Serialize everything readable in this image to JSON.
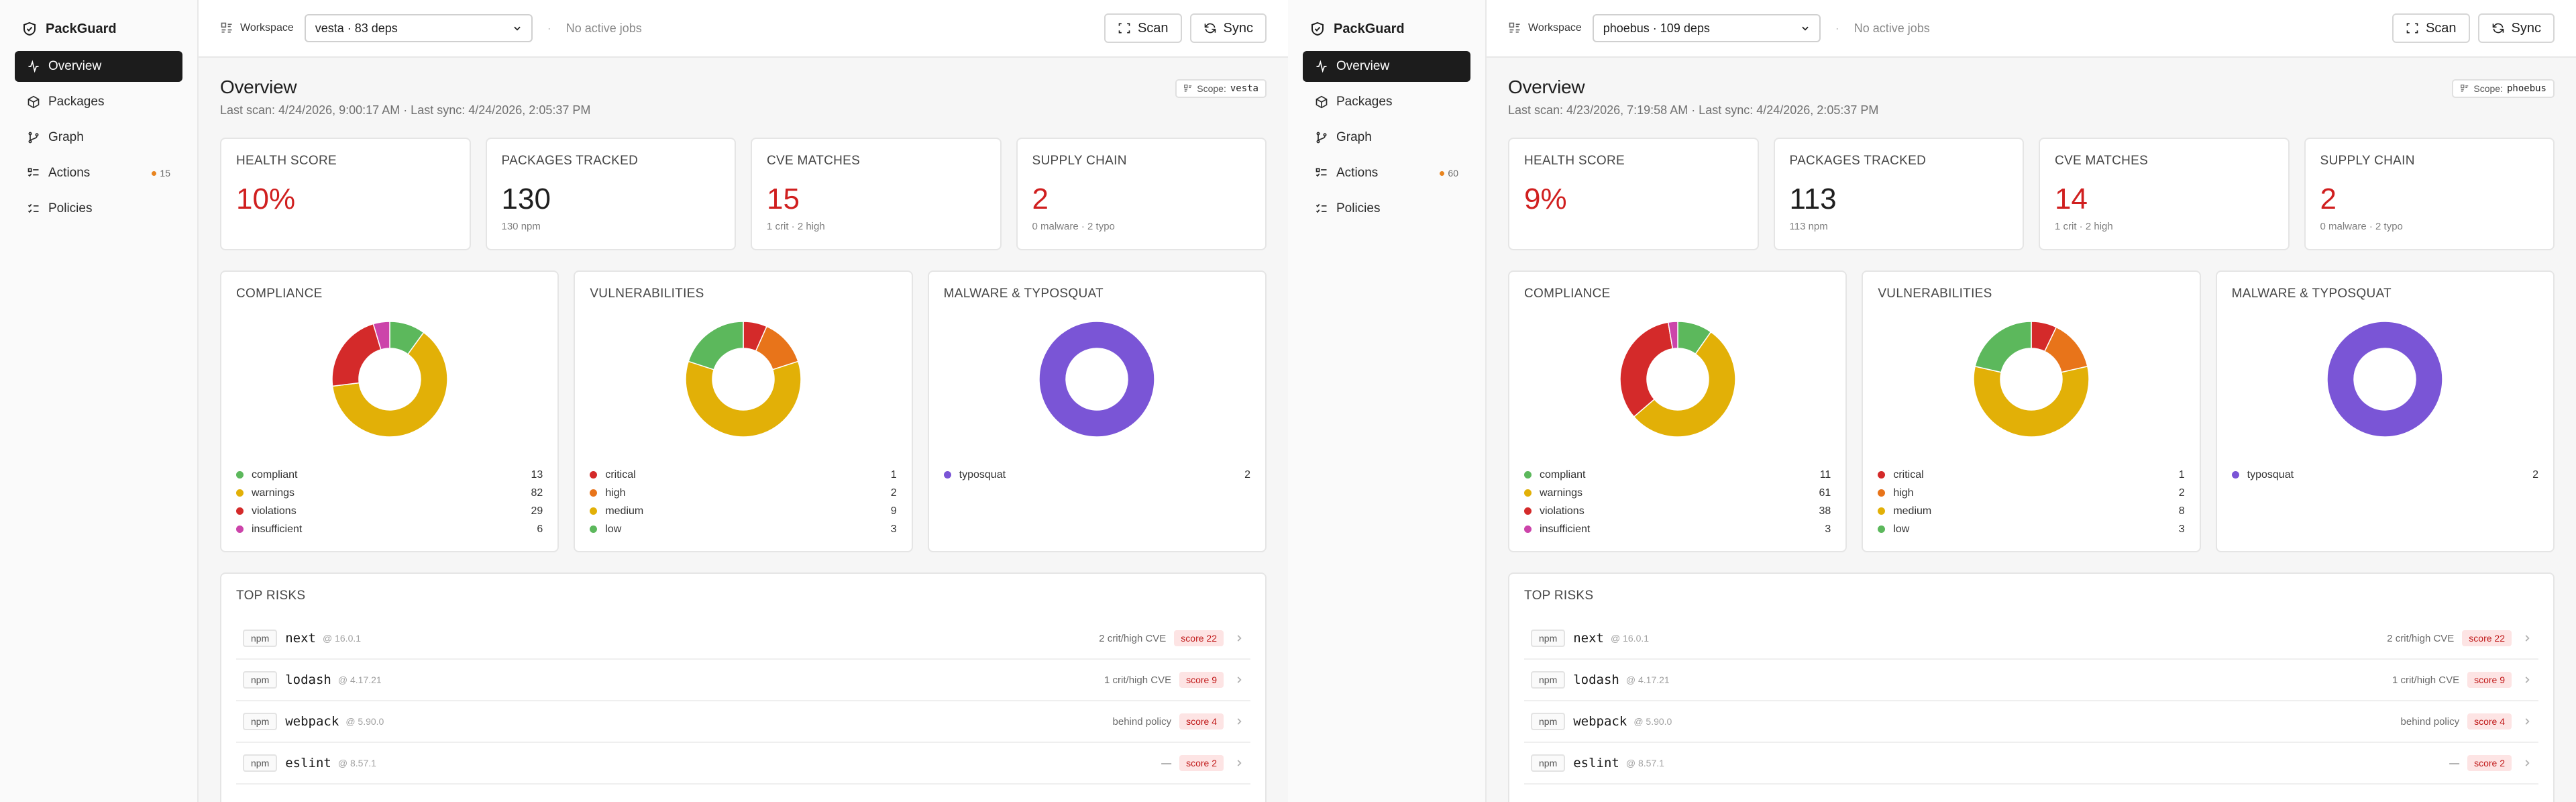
{
  "panels": [
    {
      "brand": "PackGuard",
      "nav": [
        {
          "label": "Overview",
          "badge": ""
        },
        {
          "label": "Packages",
          "badge": ""
        },
        {
          "label": "Graph",
          "badge": ""
        },
        {
          "label": "Actions",
          "badge": "15"
        },
        {
          "label": "Policies",
          "badge": ""
        }
      ],
      "topbar": {
        "workspace_label": "Workspace",
        "workspace_value": "vesta · 83 deps",
        "jobs": "No active jobs",
        "scan_label": "Scan",
        "sync_label": "Sync"
      },
      "page": {
        "title": "Overview",
        "subtitle": "Last scan: 4/24/2026, 9:00:17 AM · Last sync: 4/24/2026, 2:05:37 PM",
        "scope_label": "Scope:",
        "scope_value": "vesta"
      },
      "stats": [
        {
          "label": "HEALTH SCORE",
          "value": "10%",
          "sub": ""
        },
        {
          "label": "PACKAGES TRACKED",
          "value": "130",
          "sub": "130 npm"
        },
        {
          "label": "CVE MATCHES",
          "value": "15",
          "sub": "1 crit · 2 high"
        },
        {
          "label": "SUPPLY CHAIN",
          "value": "2",
          "sub": "0 malware · 2 typo"
        }
      ],
      "charts": [
        {
          "title": "COMPLIANCE",
          "items": [
            {
              "label": "compliant",
              "value": 13,
              "color": "#5cb85c"
            },
            {
              "label": "warnings",
              "value": 82,
              "color": "#e2b007"
            },
            {
              "label": "violations",
              "value": 29,
              "color": "#d42a2a"
            },
            {
              "label": "insufficient",
              "value": 6,
              "color": "#cc44aa"
            }
          ]
        },
        {
          "title": "VULNERABILITIES",
          "items": [
            {
              "label": "critical",
              "value": 1,
              "color": "#d42a2a"
            },
            {
              "label": "high",
              "value": 2,
              "color": "#e8741a"
            },
            {
              "label": "medium",
              "value": 9,
              "color": "#e2b007"
            },
            {
              "label": "low",
              "value": 3,
              "color": "#5cb85c"
            }
          ]
        },
        {
          "title": "MALWARE & TYPOSQUAT",
          "items": [
            {
              "label": "typosquat",
              "value": 2,
              "color": "#7a55d6"
            }
          ]
        }
      ],
      "top_risks": {
        "title": "TOP RISKS",
        "rows": [
          {
            "eco": "npm",
            "name": "next",
            "version": "@ 16.0.1",
            "reason": "2 crit/high CVE",
            "score": "score 22"
          },
          {
            "eco": "npm",
            "name": "lodash",
            "version": "@ 4.17.21",
            "reason": "1 crit/high CVE",
            "score": "score 9"
          },
          {
            "eco": "npm",
            "name": "webpack",
            "version": "@ 5.90.0",
            "reason": "behind policy",
            "score": "score 4"
          },
          {
            "eco": "npm",
            "name": "eslint",
            "version": "@ 8.57.1",
            "reason": "—",
            "score": "score 2"
          }
        ]
      }
    },
    {
      "brand": "PackGuard",
      "nav": [
        {
          "label": "Overview",
          "badge": ""
        },
        {
          "label": "Packages",
          "badge": ""
        },
        {
          "label": "Graph",
          "badge": ""
        },
        {
          "label": "Actions",
          "badge": "60"
        },
        {
          "label": "Policies",
          "badge": ""
        }
      ],
      "topbar": {
        "workspace_label": "Workspace",
        "workspace_value": "phoebus · 109 deps",
        "jobs": "No active jobs",
        "scan_label": "Scan",
        "sync_label": "Sync"
      },
      "page": {
        "title": "Overview",
        "subtitle": "Last scan: 4/23/2026, 7:19:58 AM · Last sync: 4/24/2026, 2:05:37 PM",
        "scope_label": "Scope:",
        "scope_value": "phoebus"
      },
      "stats": [
        {
          "label": "HEALTH SCORE",
          "value": "9%",
          "sub": ""
        },
        {
          "label": "PACKAGES TRACKED",
          "value": "113",
          "sub": "113 npm"
        },
        {
          "label": "CVE MATCHES",
          "value": "14",
          "sub": "1 crit · 2 high"
        },
        {
          "label": "SUPPLY CHAIN",
          "value": "2",
          "sub": "0 malware · 2 typo"
        }
      ],
      "charts": [
        {
          "title": "COMPLIANCE",
          "items": [
            {
              "label": "compliant",
              "value": 11,
              "color": "#5cb85c"
            },
            {
              "label": "warnings",
              "value": 61,
              "color": "#e2b007"
            },
            {
              "label": "violations",
              "value": 38,
              "color": "#d42a2a"
            },
            {
              "label": "insufficient",
              "value": 3,
              "color": "#cc44aa"
            }
          ]
        },
        {
          "title": "VULNERABILITIES",
          "items": [
            {
              "label": "critical",
              "value": 1,
              "color": "#d42a2a"
            },
            {
              "label": "high",
              "value": 2,
              "color": "#e8741a"
            },
            {
              "label": "medium",
              "value": 8,
              "color": "#e2b007"
            },
            {
              "label": "low",
              "value": 3,
              "color": "#5cb85c"
            }
          ]
        },
        {
          "title": "MALWARE & TYPOSQUAT",
          "items": [
            {
              "label": "typosquat",
              "value": 2,
              "color": "#7a55d6"
            }
          ]
        }
      ],
      "top_risks": {
        "title": "TOP RISKS",
        "rows": [
          {
            "eco": "npm",
            "name": "next",
            "version": "@ 16.0.1",
            "reason": "2 crit/high CVE",
            "score": "score 22"
          },
          {
            "eco": "npm",
            "name": "lodash",
            "version": "@ 4.17.21",
            "reason": "1 crit/high CVE",
            "score": "score 9"
          },
          {
            "eco": "npm",
            "name": "webpack",
            "version": "@ 5.90.0",
            "reason": "behind policy",
            "score": "score 4"
          },
          {
            "eco": "npm",
            "name": "eslint",
            "version": "@ 8.57.1",
            "reason": "—",
            "score": "score 2"
          }
        ]
      }
    }
  ]
}
